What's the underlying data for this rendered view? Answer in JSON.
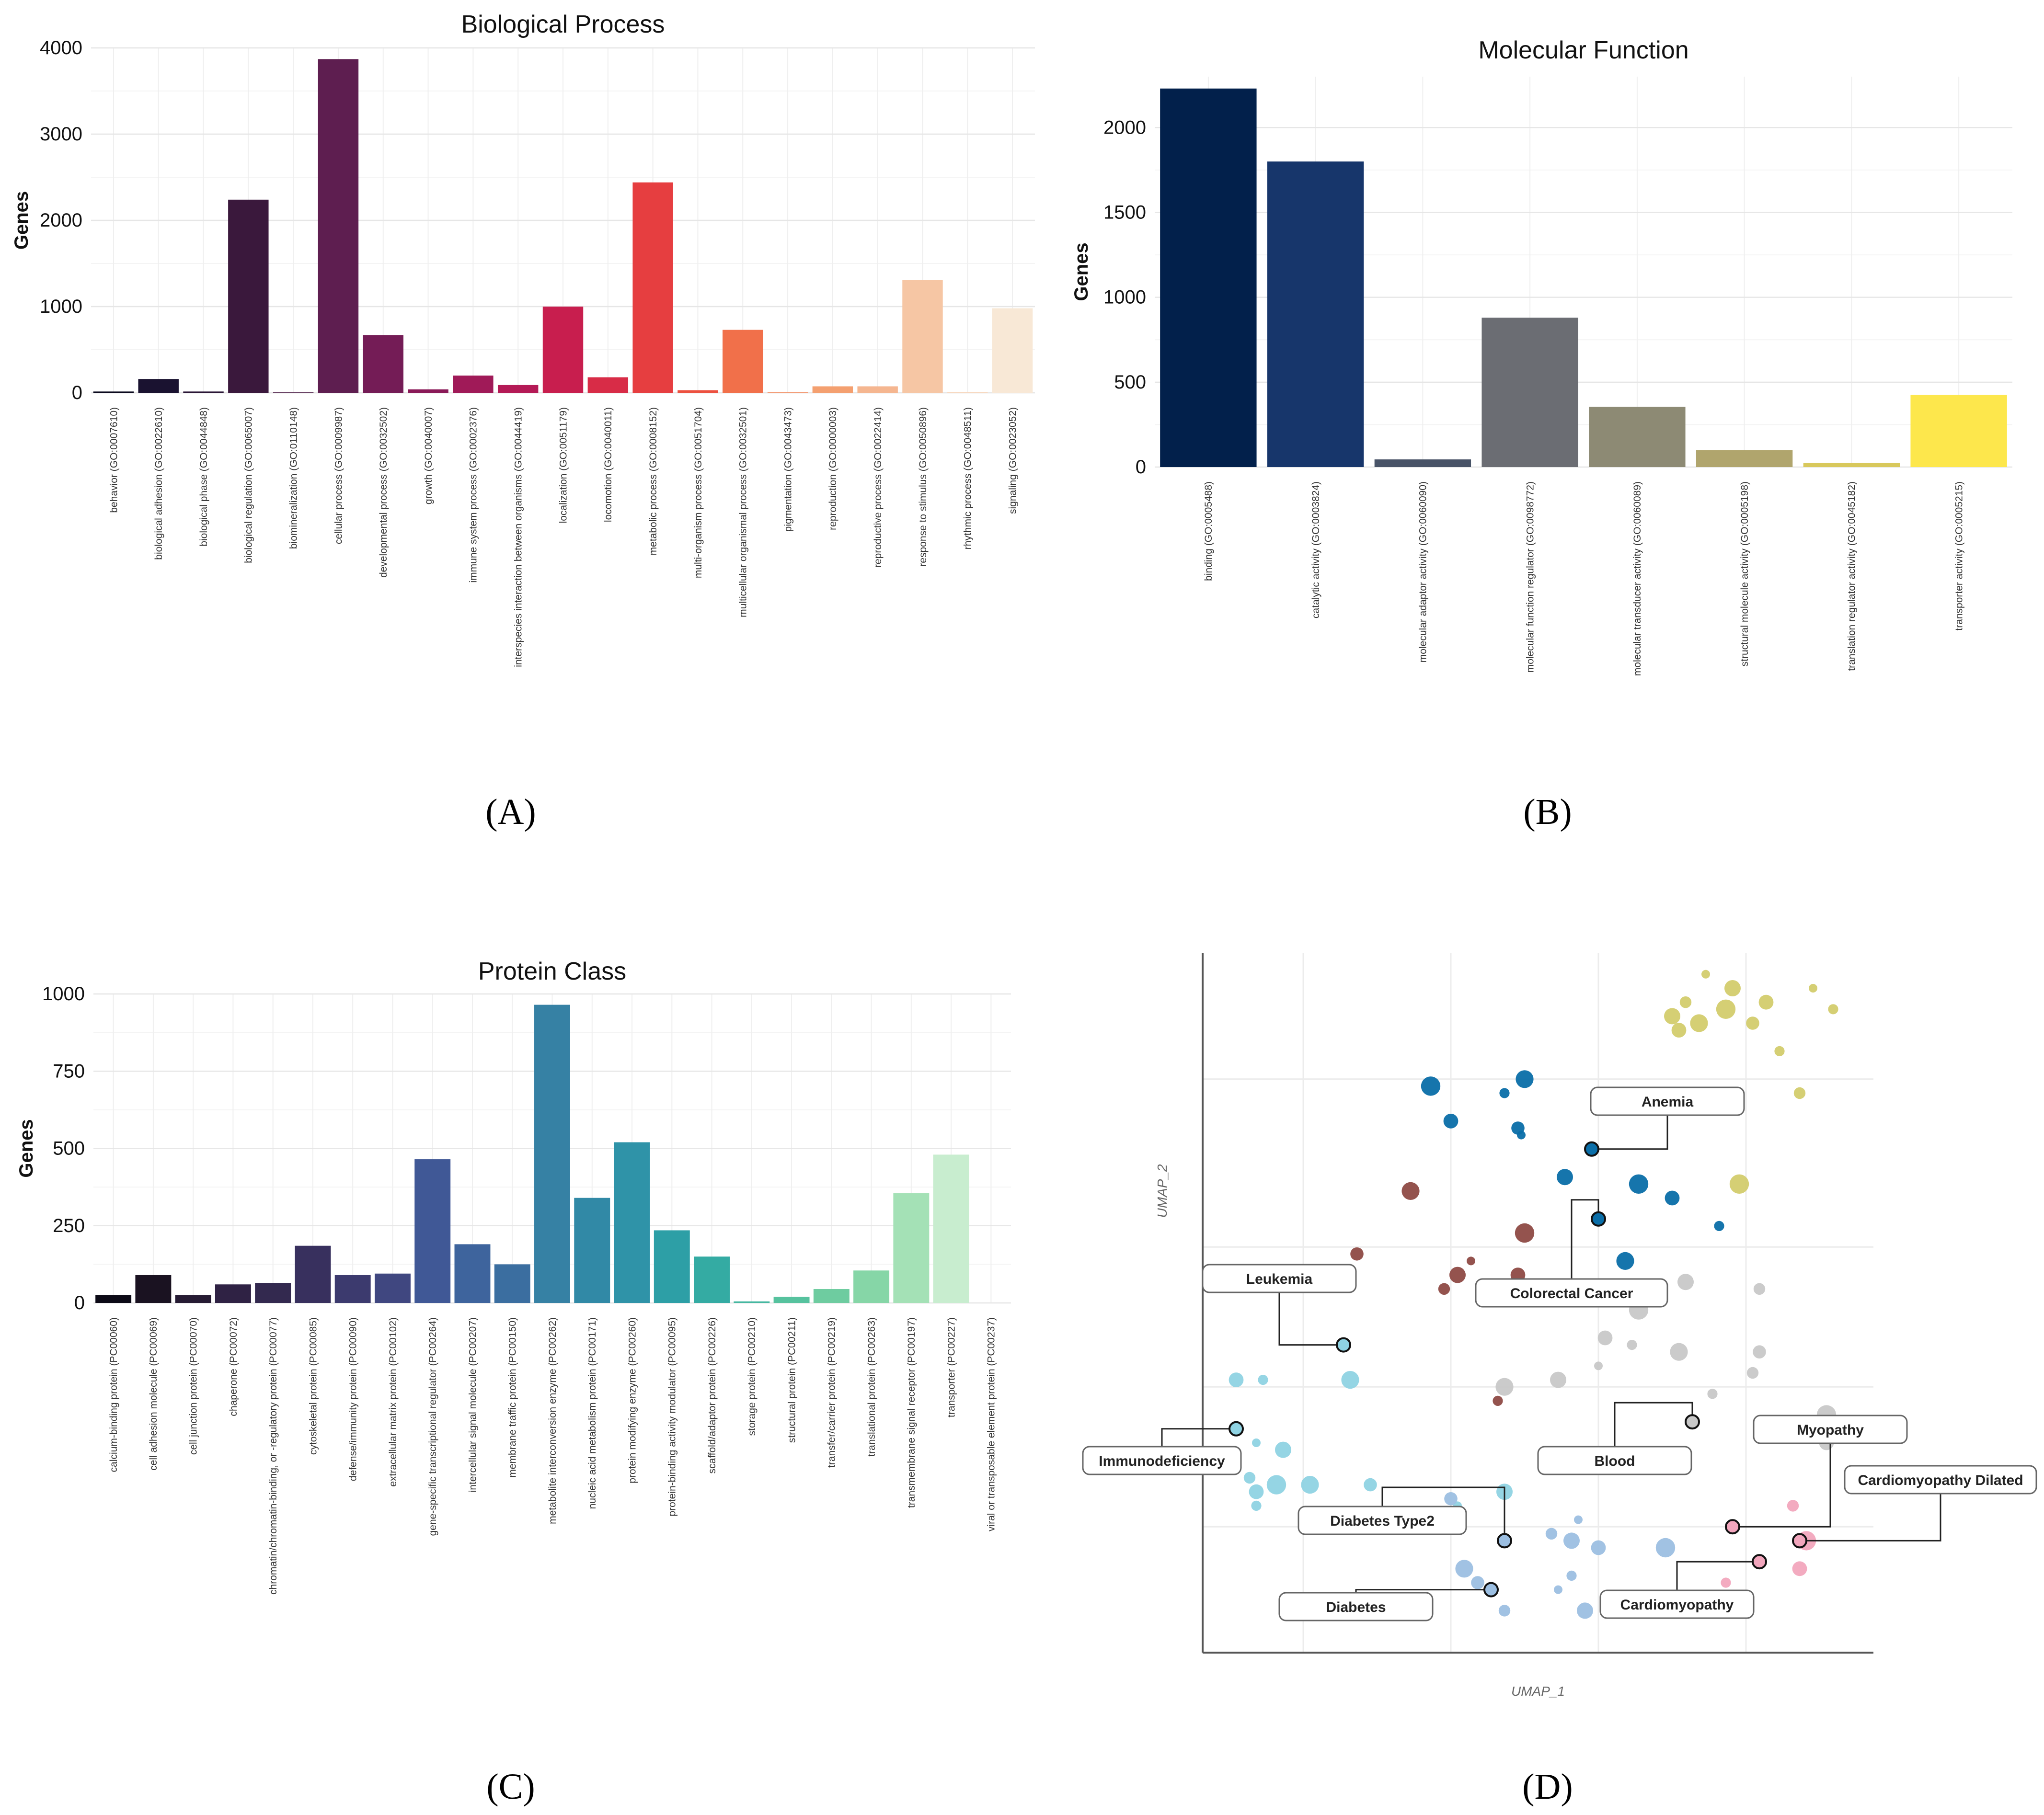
{
  "panels": [
    {
      "id": "A",
      "label": "(A)"
    },
    {
      "id": "B",
      "label": "(B)"
    },
    {
      "id": "C",
      "label": "(C)"
    },
    {
      "id": "D",
      "label": "(D)"
    }
  ],
  "chart_data": [
    {
      "panel": "A",
      "type": "bar",
      "title": "Biological Process",
      "xlabel": "",
      "ylabel": "Genes",
      "ylim": [
        0,
        4000
      ],
      "yticks": [
        0,
        1000,
        2000,
        3000,
        4000
      ],
      "grid": true,
      "categories": [
        "behavior (GO:0007610)",
        "biological adhesion (GO:0022610)",
        "biological phase (GO:0044848)",
        "biological regulation (GO:0065007)",
        "biomineralization (GO:0110148)",
        "cellular process (GO:0009987)",
        "developmental process (GO:0032502)",
        "growth (GO:0040007)",
        "immune system process (GO:0002376)",
        "interspecies interaction between organisms (GO:0044419)",
        "localization (GO:0051179)",
        "locomotion (GO:0040011)",
        "metabolic process (GO:0008152)",
        "multi-organism process (GO:0051704)",
        "multicellular organismal process (GO:0032501)",
        "pigmentation (GO:0043473)",
        "reproduction (GO:0000003)",
        "reproductive process (GO:0022414)",
        "response to stimulus (GO:0050896)",
        "rhythmic process (GO:0048511)",
        "signaling (GO:0023052)"
      ],
      "values": [
        15,
        160,
        15,
        2240,
        5,
        3870,
        670,
        40,
        200,
        90,
        1000,
        180,
        2440,
        30,
        730,
        5,
        75,
        75,
        1310,
        10,
        980
      ],
      "colors": [
        "#0b0a1e",
        "#1a1230",
        "#2a1636",
        "#3a183c",
        "#4a1a44",
        "#5e1e50",
        "#741c56",
        "#8a1a58",
        "#a01a58",
        "#b41a56",
        "#c81e4e",
        "#d82c47",
        "#e63e40",
        "#ec5140",
        "#f1704a",
        "#f3895a",
        "#f4a070",
        "#f5b690",
        "#f6c6a4",
        "#f7d8c0",
        "#f8e8d6"
      ]
    },
    {
      "panel": "B",
      "type": "bar",
      "title": "Molecular Function",
      "xlabel": "",
      "ylabel": "Genes",
      "ylim": [
        0,
        2300
      ],
      "yticks": [
        0,
        500,
        1000,
        1500,
        2000
      ],
      "grid": true,
      "categories": [
        "binding (GO:0005488)",
        "catalytic activity (GO:0003824)",
        "molecular adaptor activity (GO:0060090)",
        "molecular function regulator (GO:0098772)",
        "molecular transducer activity (GO:0060089)",
        "structural molecule activity (GO:0005198)",
        "translation regulator activity (GO:0045182)",
        "transporter activity (GO:0005215)"
      ],
      "values": [
        2230,
        1800,
        45,
        880,
        355,
        100,
        25,
        425
      ],
      "colors": [
        "#02204b",
        "#17366b",
        "#485367",
        "#6b6d73",
        "#8d8a74",
        "#b0a56d",
        "#d8c85c",
        "#fde74c"
      ]
    },
    {
      "panel": "C",
      "type": "bar",
      "title": "Protein Class",
      "xlabel": "",
      "ylabel": "Genes",
      "ylim": [
        0,
        1000
      ],
      "yticks": [
        0,
        250,
        500,
        750,
        1000
      ],
      "grid": true,
      "categories": [
        "calcium-binding protein (PC00060)",
        "cell adhesion molecule (PC00069)",
        "cell junction protein (PC00070)",
        "chaperone (PC00072)",
        "chromatin/chromatin-binding, or -regulatory protein (PC00077)",
        "cytoskeletal protein (PC00085)",
        "defense/immunity protein (PC00090)",
        "extracellular matrix protein (PC00102)",
        "gene-specific transcriptional regulator (PC00264)",
        "intercellular signal molecule (PC00207)",
        "membrane traffic protein (PC00150)",
        "metabolite interconversion enzyme (PC00262)",
        "nucleic acid metabolism protein (PC00171)",
        "protein modifying enzyme (PC00260)",
        "protein-binding activity modulator (PC00095)",
        "scaffold/adaptor protein (PC00226)",
        "storage protein (PC00210)",
        "structural protein (PC00211)",
        "transfer/carrier protein (PC00219)",
        "translational protein (PC00263)",
        "transmembrane signal receptor (PC00197)",
        "transporter (PC00227)",
        "viral or transposable element protein (PC00237)"
      ],
      "values": [
        25,
        90,
        25,
        60,
        65,
        185,
        90,
        95,
        465,
        190,
        125,
        965,
        340,
        520,
        235,
        150,
        5,
        20,
        45,
        105,
        355,
        480,
        0
      ],
      "colors": [
        "#0c0a16",
        "#1a1221",
        "#261b33",
        "#2f2244",
        "#33294f",
        "#38305e",
        "#3c3a6e",
        "#404780",
        "#405896",
        "#3e649d",
        "#3b6ea0",
        "#3681a4",
        "#3189a6",
        "#2f93a8",
        "#2d9fa6",
        "#34aba3",
        "#45b7a0",
        "#56c29e",
        "#6ecca0",
        "#86d6a7",
        "#a4e1b6",
        "#c8edcf",
        "#e6f7ea"
      ]
    },
    {
      "panel": "D",
      "type": "scatter",
      "title": "",
      "xlabel": "UMAP_1",
      "ylabel": "UMAP_2",
      "xlim": [
        0,
        10
      ],
      "ylim": [
        0,
        10
      ],
      "grid": true,
      "series": [
        {
          "group": "olive",
          "color": "#d3cc6d",
          "points": [
            [
              7.5,
              9.7
            ],
            [
              7.9,
              9.5
            ],
            [
              7.2,
              9.3
            ],
            [
              7.8,
              9.2
            ],
            [
              8.4,
              9.3
            ],
            [
              9.4,
              9.2
            ],
            [
              7.4,
              9.0
            ],
            [
              8.2,
              9.0
            ],
            [
              9.1,
              9.5
            ],
            [
              7.0,
              9.1
            ],
            [
              8.9,
              8.0
            ],
            [
              8.0,
              6.7
            ],
            [
              7.1,
              8.9
            ],
            [
              8.6,
              8.6
            ]
          ]
        },
        {
          "group": "blue",
          "color": "#0a6ea8",
          "points": [
            [
              3.4,
              8.1
            ],
            [
              3.7,
              7.6
            ],
            [
              4.5,
              8.0
            ],
            [
              4.8,
              8.2
            ],
            [
              4.7,
              7.5
            ],
            [
              4.75,
              7.4
            ],
            [
              5.4,
              6.8
            ],
            [
              5.9,
              6.2
            ],
            [
              6.5,
              6.7
            ],
            [
              7.0,
              6.5
            ],
            [
              7.7,
              6.1
            ],
            [
              6.3,
              5.6
            ]
          ]
        },
        {
          "group": "brown",
          "color": "#8e4a44",
          "points": [
            [
              3.1,
              6.6
            ],
            [
              2.3,
              5.7
            ],
            [
              4.0,
              5.6
            ],
            [
              3.8,
              5.4
            ],
            [
              3.6,
              5.2
            ],
            [
              4.8,
              6.0
            ],
            [
              4.7,
              5.4
            ],
            [
              4.4,
              3.6
            ]
          ]
        },
        {
          "group": "grey",
          "color": "#c8c8c8",
          "points": [
            [
              7.2,
              5.3
            ],
            [
              8.3,
              5.2
            ],
            [
              6.5,
              4.9
            ],
            [
              6.0,
              4.5
            ],
            [
              6.4,
              4.4
            ],
            [
              7.1,
              4.3
            ],
            [
              8.3,
              4.3
            ],
            [
              5.9,
              4.1
            ],
            [
              5.3,
              3.9
            ],
            [
              8.2,
              4.0
            ],
            [
              9.3,
              3.4
            ],
            [
              9.3,
              3.0
            ],
            [
              7.6,
              3.7
            ],
            [
              4.5,
              3.8
            ]
          ]
        },
        {
          "group": "cyan",
          "color": "#8fd3e3",
          "points": [
            [
              0.5,
              3.9
            ],
            [
              0.9,
              3.9
            ],
            [
              2.2,
              3.9
            ],
            [
              0.5,
              3.2
            ],
            [
              0.8,
              3.0
            ],
            [
              1.2,
              2.9
            ],
            [
              0.7,
              2.5
            ],
            [
              1.1,
              2.4
            ],
            [
              0.8,
              2.3
            ],
            [
              0.8,
              2.1
            ],
            [
              1.6,
              2.4
            ],
            [
              2.5,
              2.4
            ],
            [
              3.8,
              2.1
            ],
            [
              4.5,
              2.3
            ]
          ]
        },
        {
          "group": "lightblue",
          "color": "#9cbfe2",
          "points": [
            [
              3.7,
              2.2
            ],
            [
              5.6,
              1.9
            ],
            [
              5.5,
              1.6
            ],
            [
              5.2,
              1.7
            ],
            [
              6.9,
              1.5
            ],
            [
              5.9,
              1.5
            ],
            [
              5.5,
              1.1
            ],
            [
              3.9,
              1.2
            ],
            [
              4.1,
              1.0
            ],
            [
              5.3,
              0.9
            ],
            [
              5.7,
              0.6
            ],
            [
              4.5,
              0.6
            ]
          ]
        },
        {
          "group": "pink",
          "color": "#f2a6bd",
          "points": [
            [
              8.8,
              2.1
            ],
            [
              9.0,
              1.6
            ],
            [
              8.9,
              1.2
            ],
            [
              7.8,
              1.0
            ]
          ]
        }
      ],
      "annotations": [
        {
          "text": "Anemia",
          "color": "#0a6ea8"
        },
        {
          "text": "Leukemia",
          "color": "#8fd3e3"
        },
        {
          "text": "Colorectal Cancer",
          "color": "#0a6ea8"
        },
        {
          "text": "Immunodeficiency",
          "color": "#8fd3e3"
        },
        {
          "text": "Blood",
          "color": "#c8c8c8"
        },
        {
          "text": "Myopathy",
          "color": "#f2a6bd"
        },
        {
          "text": "Cardiomyopathy Dilated",
          "color": "#f2a6bd"
        },
        {
          "text": "Diabetes Type2",
          "color": "#9cbfe2"
        },
        {
          "text": "Diabetes",
          "color": "#9cbfe2"
        },
        {
          "text": "Cardiomyopathy",
          "color": "#f2a6bd"
        }
      ]
    }
  ]
}
